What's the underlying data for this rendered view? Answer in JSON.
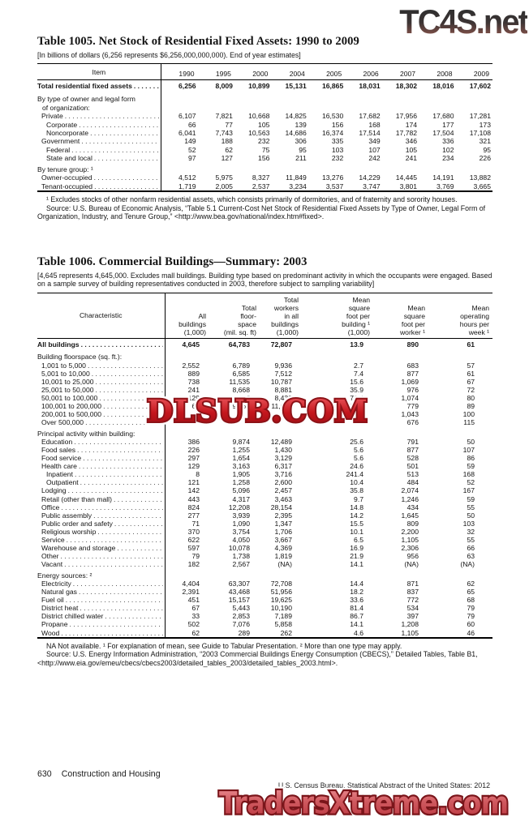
{
  "watermarks": {
    "top": "TC4S.net",
    "middle": "DLSUB.COM",
    "bottom": "TradersXtreme.com"
  },
  "table1005": {
    "title": "Table 1005. Net Stock of Residential Fixed Assets: 1990 to 2009",
    "note": "[In billions of dollars (6,256 represents $6,256,000,000,000). End of year estimates]",
    "columns": [
      "Item",
      "1990",
      "1995",
      "2000",
      "2004",
      "2005",
      "2006",
      "2007",
      "2008",
      "2009"
    ],
    "rows": [
      {
        "style": "total",
        "label": "Total residential fixed assets",
        "leader": true,
        "values": [
          "6,256",
          "8,009",
          "10,899",
          "15,131",
          "16,865",
          "18,031",
          "18,302",
          "18,016",
          "17,602"
        ]
      },
      {
        "style": "section",
        "label": "By type of owner and legal form",
        "values": []
      },
      {
        "style": "section-cont",
        "label": "of organization:",
        "values": []
      },
      {
        "style": "data",
        "indent": 1,
        "label": "Private",
        "leader": true,
        "values": [
          "6,107",
          "7,821",
          "10,668",
          "14,825",
          "16,530",
          "17,682",
          "17,956",
          "17,680",
          "17,281"
        ]
      },
      {
        "style": "data",
        "indent": 2,
        "label": "Corporate",
        "leader": true,
        "values": [
          "66",
          "77",
          "105",
          "139",
          "156",
          "168",
          "174",
          "177",
          "173"
        ]
      },
      {
        "style": "data",
        "indent": 2,
        "label": "Noncorporate",
        "leader": true,
        "values": [
          "6,041",
          "7,743",
          "10,563",
          "14,686",
          "16,374",
          "17,514",
          "17,782",
          "17,504",
          "17,108"
        ]
      },
      {
        "style": "data",
        "indent": 1,
        "label": "Government",
        "leader": true,
        "values": [
          "149",
          "188",
          "232",
          "306",
          "335",
          "349",
          "346",
          "336",
          "321"
        ]
      },
      {
        "style": "data",
        "indent": 2,
        "label": "Federal",
        "leader": true,
        "values": [
          "52",
          "62",
          "75",
          "95",
          "103",
          "107",
          "105",
          "102",
          "95"
        ]
      },
      {
        "style": "data",
        "indent": 2,
        "label": "State and local",
        "leader": true,
        "values": [
          "97",
          "127",
          "156",
          "211",
          "232",
          "242",
          "241",
          "234",
          "226"
        ]
      },
      {
        "style": "section",
        "label": "By tenure group: ¹",
        "values": []
      },
      {
        "style": "data",
        "indent": 1,
        "label": "Owner-occupied",
        "leader": true,
        "values": [
          "4,512",
          "5,975",
          "8,327",
          "11,849",
          "13,276",
          "14,229",
          "14,445",
          "14,191",
          "13,882"
        ]
      },
      {
        "style": "data",
        "indent": 1,
        "label": "Tenant-occupied",
        "leader": true,
        "values": [
          "1,719",
          "2,005",
          "2,537",
          "3,234",
          "3,537",
          "3,747",
          "3,801",
          "3,769",
          "3,665"
        ]
      }
    ],
    "footnotes": [
      "¹ Excludes stocks of other nonfarm residential assets, which consists primarily of dormitories, and of fraternity and sorority houses.",
      "Source: U.S. Bureau of Economic Analysis, “Table 5.1 Current-Cost Net Stock of Residential Fixed Assets by Type of Owner, Legal Form of Organization, Industry, and Tenure Group,” <http://www.bea.gov/national/index.htm#fixed>."
    ]
  },
  "table1006": {
    "title": "Table 1006. Commercial Buildings—Summary: 2003",
    "note": "[4,645 represents 4,645,000. Excludes mall buildings.  Building type based on predominant activity in which the occupants were engaged. Based on a sample survey of building representatives conducted in 2003, therefore subject to sampling variability]",
    "columns": {
      "label": "Characteristic",
      "numeric": [
        [
          "All",
          "buildings",
          "(1,000)"
        ],
        [
          "Total",
          "floor-",
          "space",
          "(mil. sq. ft)"
        ],
        [
          "Total",
          "workers",
          "in all",
          "buildings",
          "(1,000)"
        ],
        [
          "Mean",
          "square",
          "foot per",
          "building ¹",
          "(1,000)"
        ],
        [
          "Mean",
          "square",
          "foot per",
          "worker ¹"
        ],
        [
          "Mean",
          "operating",
          "hours per",
          "week ¹"
        ]
      ]
    },
    "rows": [
      {
        "style": "total",
        "label": "All buildings",
        "leader": true,
        "values": [
          "4,645",
          "64,783",
          "72,807",
          "13.9",
          "890",
          "61"
        ]
      },
      {
        "style": "section",
        "label": "Building floorspace (sq. ft.):",
        "values": []
      },
      {
        "style": "data",
        "indent": 1,
        "label": "1,001 to 5,000",
        "leader": true,
        "values": [
          "2,552",
          "6,789",
          "9,936",
          "2.7",
          "683",
          "57"
        ]
      },
      {
        "style": "data",
        "indent": 1,
        "label": "5,001 to 10,000",
        "leader": true,
        "values": [
          "889",
          "6,585",
          "7,512",
          "7.4",
          "877",
          "61"
        ]
      },
      {
        "style": "data",
        "indent": 1,
        "label": "10,001 to 25,000",
        "leader": true,
        "values": [
          "738",
          "11,535",
          "10,787",
          "15.6",
          "1,069",
          "67"
        ]
      },
      {
        "style": "data",
        "indent": 1,
        "label": "25,001 to 50,000",
        "leader": true,
        "values": [
          "241",
          "8,668",
          "8,881",
          "35.9",
          "976",
          "72"
        ]
      },
      {
        "style": "data",
        "indent": 1,
        "label": "50,001 to 100,000",
        "leader": true,
        "values": [
          "129",
          "9,057",
          "8,432",
          "70.4",
          "1,074",
          "80"
        ]
      },
      {
        "style": "data",
        "indent": 1,
        "label": "100,001 to 200,000",
        "leader": true,
        "values": [
          "65",
          "9,064",
          "11,632",
          "138.8",
          "779",
          "89"
        ]
      },
      {
        "style": "data",
        "indent": 1,
        "label": "200,001 to 500,000",
        "leader": true,
        "values": [
          "",
          "",
          "",
          "",
          "1,043",
          "100"
        ]
      },
      {
        "style": "data",
        "indent": 1,
        "label": "Over 500,000",
        "leader": true,
        "values": [
          "",
          "",
          "",
          "",
          "676",
          "115"
        ]
      },
      {
        "style": "section",
        "label": "Principal activity within building:",
        "values": []
      },
      {
        "style": "data",
        "indent": 1,
        "label": "Education",
        "leader": true,
        "values": [
          "386",
          "9,874",
          "12,489",
          "25.6",
          "791",
          "50"
        ]
      },
      {
        "style": "data",
        "indent": 1,
        "label": "Food sales",
        "leader": true,
        "values": [
          "226",
          "1,255",
          "1,430",
          "5.6",
          "877",
          "107"
        ]
      },
      {
        "style": "data",
        "indent": 1,
        "label": "Food service",
        "leader": true,
        "values": [
          "297",
          "1,654",
          "3,129",
          "5.6",
          "528",
          "86"
        ]
      },
      {
        "style": "data",
        "indent": 1,
        "label": "Health care",
        "leader": true,
        "values": [
          "129",
          "3,163",
          "6,317",
          "24.6",
          "501",
          "59"
        ]
      },
      {
        "style": "data",
        "indent": 2,
        "label": "Inpatient",
        "leader": true,
        "values": [
          "8",
          "1,905",
          "3,716",
          "241.4",
          "513",
          "168"
        ]
      },
      {
        "style": "data",
        "indent": 2,
        "label": "Outpatient",
        "leader": true,
        "values": [
          "121",
          "1,258",
          "2,600",
          "10.4",
          "484",
          "52"
        ]
      },
      {
        "style": "data",
        "indent": 1,
        "label": "Lodging",
        "leader": true,
        "values": [
          "142",
          "5,096",
          "2,457",
          "35.8",
          "2,074",
          "167"
        ]
      },
      {
        "style": "data",
        "indent": 1,
        "label": "Retail (other than mall)",
        "leader": true,
        "values": [
          "443",
          "4,317",
          "3,463",
          "9.7",
          "1,246",
          "59"
        ]
      },
      {
        "style": "data",
        "indent": 1,
        "label": "Office",
        "leader": true,
        "values": [
          "824",
          "12,208",
          "28,154",
          "14.8",
          "434",
          "55"
        ]
      },
      {
        "style": "data",
        "indent": 1,
        "label": "Public assembly",
        "leader": true,
        "values": [
          "277",
          "3,939",
          "2,395",
          "14.2",
          "1,645",
          "50"
        ]
      },
      {
        "style": "data",
        "indent": 1,
        "label": "Public order and safety",
        "leader": true,
        "values": [
          "71",
          "1,090",
          "1,347",
          "15.5",
          "809",
          "103"
        ]
      },
      {
        "style": "data",
        "indent": 1,
        "label": "Religious worship",
        "leader": true,
        "values": [
          "370",
          "3,754",
          "1,706",
          "10.1",
          "2,200",
          "32"
        ]
      },
      {
        "style": "data",
        "indent": 1,
        "label": "Service",
        "leader": true,
        "values": [
          "622",
          "4,050",
          "3,667",
          "6.5",
          "1,105",
          "55"
        ]
      },
      {
        "style": "data",
        "indent": 1,
        "label": "Warehouse and storage",
        "leader": true,
        "values": [
          "597",
          "10,078",
          "4,369",
          "16.9",
          "2,306",
          "66"
        ]
      },
      {
        "style": "data",
        "indent": 1,
        "label": "Other",
        "leader": true,
        "values": [
          "79",
          "1,738",
          "1,819",
          "21.9",
          "956",
          "63"
        ]
      },
      {
        "style": "data",
        "indent": 1,
        "label": "Vacant",
        "leader": true,
        "values": [
          "182",
          "2,567",
          "(NA)",
          "14.1",
          "(NA)",
          "(NA)"
        ]
      },
      {
        "style": "section",
        "label": "Energy sources: ²",
        "values": []
      },
      {
        "style": "data",
        "indent": 1,
        "label": "Electricity",
        "leader": true,
        "values": [
          "4,404",
          "63,307",
          "72,708",
          "14.4",
          "871",
          "62"
        ]
      },
      {
        "style": "data",
        "indent": 1,
        "label": "Natural gas",
        "leader": true,
        "values": [
          "2,391",
          "43,468",
          "51,956",
          "18.2",
          "837",
          "65"
        ]
      },
      {
        "style": "data",
        "indent": 1,
        "label": "Fuel oil",
        "leader": true,
        "values": [
          "451",
          "15,157",
          "19,625",
          "33.6",
          "772",
          "68"
        ]
      },
      {
        "style": "data",
        "indent": 1,
        "label": "District heat",
        "leader": true,
        "values": [
          "67",
          "5,443",
          "10,190",
          "81.4",
          "534",
          "79"
        ]
      },
      {
        "style": "data",
        "indent": 1,
        "label": "District chilled water",
        "leader": true,
        "values": [
          "33",
          "2,853",
          "7,189",
          "86.7",
          "397",
          "79"
        ]
      },
      {
        "style": "data",
        "indent": 1,
        "label": "Propane",
        "leader": true,
        "values": [
          "502",
          "7,076",
          "5,858",
          "14.1",
          "1,208",
          "60"
        ]
      },
      {
        "style": "data",
        "indent": 1,
        "label": "Wood",
        "leader": true,
        "values": [
          "62",
          "289",
          "262",
          "4.6",
          "1,105",
          "46"
        ]
      }
    ],
    "footnotes": [
      "NA Not available. ¹ For explanation of mean, see Guide to Tabular Presentation. ² More than one type may apply.",
      "Source: U.S. Energy Information Administration, “2003 Commercial Buildings Energy Consumption (CBECS),” Detailed Tables, Table B1, <http://www.eia.gov/emeu/cbecs/cbecs2003/detailed_tables_2003/detailed_tables_2003.html>."
    ]
  },
  "footer": {
    "page_number": "630",
    "section": "Construction and Housing",
    "source": "U.S. Census Bureau, Statistical Abstract of the United States: 2012"
  }
}
